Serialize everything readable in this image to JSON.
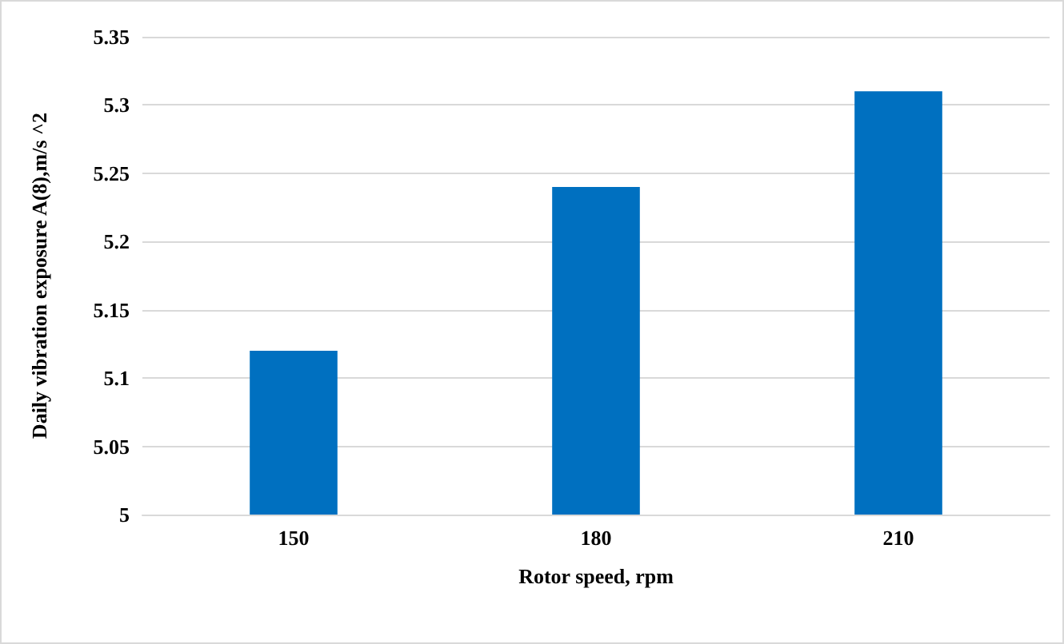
{
  "chart_data": {
    "type": "bar",
    "xlabel": "Rotor speed, rpm",
    "ylabel": "Daily vibration exposure A(8),m/s ^2",
    "categories": [
      "150",
      "180",
      "210"
    ],
    "series": [
      {
        "color": "#0070c0",
        "values": [
          5.12,
          5.24,
          5.31
        ]
      }
    ],
    "ylim": [
      5,
      5.35
    ],
    "yticks": [
      5,
      5.05,
      5.1,
      5.15,
      5.2,
      5.25,
      5.3,
      5.35
    ],
    "grid": "y"
  }
}
